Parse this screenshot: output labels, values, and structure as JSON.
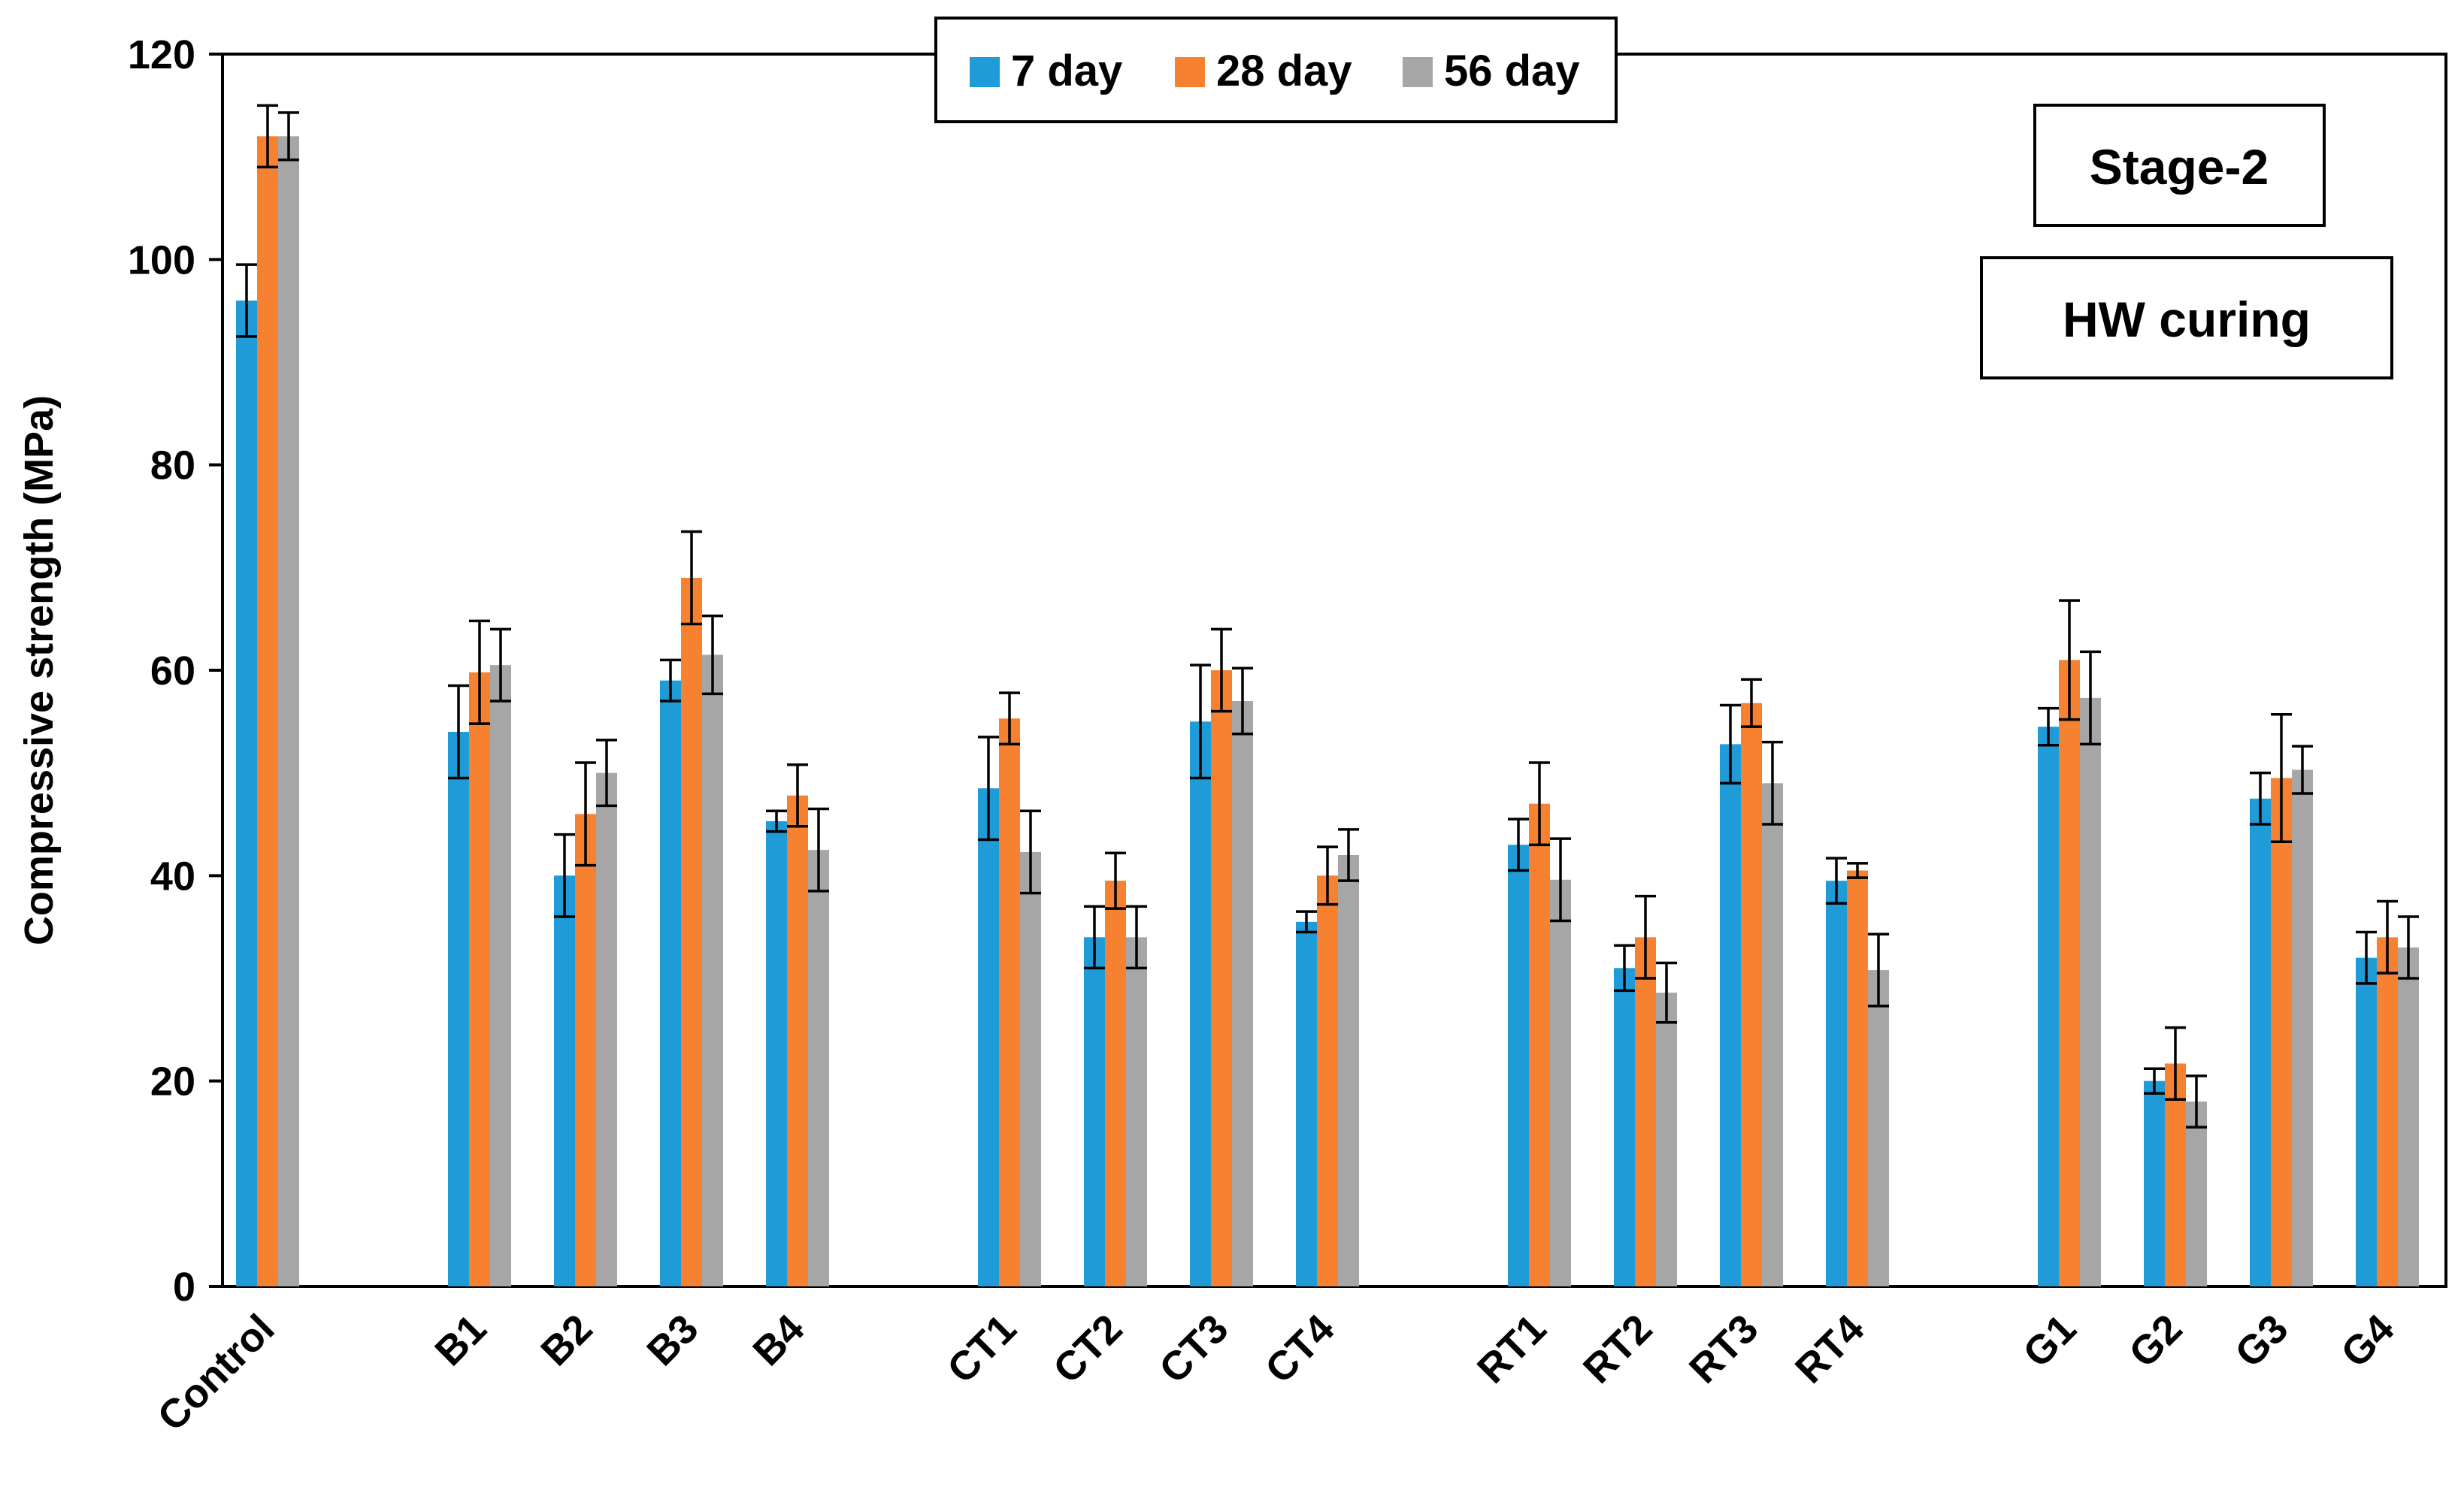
{
  "chart_data": {
    "type": "bar",
    "title": "",
    "xlabel": "",
    "ylabel": "Compressive strength (MPa)",
    "ylim": [
      0,
      120
    ],
    "yticks": [
      0,
      20,
      40,
      60,
      80,
      100,
      120
    ],
    "grid": false,
    "legend_position": "top-center",
    "annotations": [
      "Stage-2",
      "HW curing"
    ],
    "categories": [
      "Control",
      "B1",
      "B2",
      "B3",
      "B4",
      "CT1",
      "CT2",
      "CT3",
      "CT4",
      "RT1",
      "RT2",
      "RT3",
      "RT4",
      "G1",
      "G2",
      "G3",
      "G4"
    ],
    "series": [
      {
        "name": "7 day",
        "color": "#1f9bd7",
        "values": [
          96,
          54,
          40,
          59,
          45.3,
          48.5,
          34,
          55,
          35.5,
          43,
          31,
          52.8,
          39.5,
          54.5,
          20,
          47.5,
          32
        ],
        "errors": [
          3.5,
          4.5,
          4,
          2,
          1,
          5,
          3,
          5.5,
          1,
          2.5,
          2.2,
          3.8,
          2.2,
          1.8,
          1.2,
          2.5,
          2.5
        ]
      },
      {
        "name": "28 day",
        "color": "#f58131",
        "values": [
          112,
          59.8,
          46,
          69,
          47.8,
          55.3,
          39.5,
          60,
          40,
          47,
          34,
          56.8,
          40.5,
          61,
          21.7,
          49.5,
          34
        ],
        "errors": [
          3,
          5,
          5,
          4.5,
          3,
          2.5,
          2.7,
          4,
          2.8,
          4,
          4,
          2.3,
          0.7,
          5.8,
          3.5,
          6.2,
          3.5
        ]
      },
      {
        "name": "56 day",
        "color": "#a6a6a6",
        "values": [
          112,
          60.5,
          50,
          61.5,
          42.5,
          42.3,
          34,
          57,
          42,
          39.6,
          28.6,
          49,
          30.8,
          57.3,
          18,
          50.3,
          33
        ],
        "errors": [
          2.3,
          3.5,
          3.2,
          3.8,
          4,
          4,
          3,
          3.2,
          2.5,
          4,
          2.9,
          4,
          3.5,
          4.5,
          2.5,
          2.3,
          3
        ]
      }
    ]
  }
}
